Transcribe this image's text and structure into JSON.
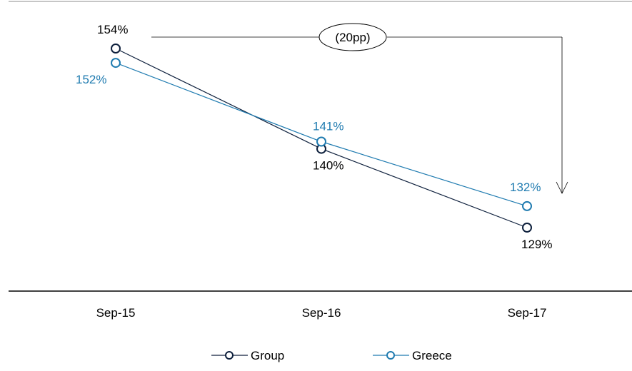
{
  "chart_data": {
    "type": "line",
    "categories": [
      "Sep-15",
      "Sep-16",
      "Sep-17"
    ],
    "series": [
      {
        "name": "Group",
        "values": [
          154,
          140,
          129
        ],
        "labels": [
          "154%",
          "140%",
          "129%"
        ],
        "color": "#0d1f3c"
      },
      {
        "name": "Greece",
        "values": [
          152,
          141,
          132
        ],
        "labels": [
          "152%",
          "141%",
          "132%"
        ],
        "color": "#1f7bb0"
      }
    ],
    "ylim": [
      115,
      160
    ],
    "annotation": "(20pp)",
    "title": "",
    "xlabel": "",
    "ylabel": "",
    "grid": false,
    "legend": "bottom"
  }
}
